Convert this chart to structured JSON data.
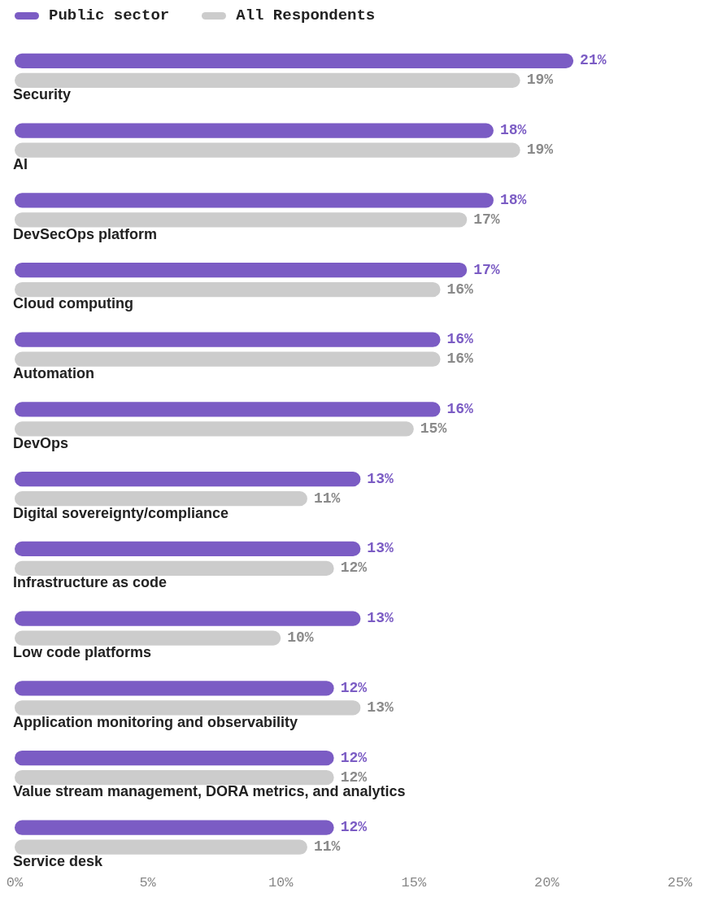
{
  "chart_data": {
    "type": "bar",
    "orientation": "horizontal",
    "categories": [
      "Security",
      "AI",
      "DevSecOps platform",
      "Cloud computing",
      "Automation",
      "DevOps",
      "Digital sovereignty/compliance",
      "Infrastructure as code",
      "Low code platforms",
      "Application monitoring and observability",
      "Value stream management, DORA metrics, and analytics",
      "Service desk"
    ],
    "series": [
      {
        "name": "Public sector",
        "color": "#7b5cc4",
        "values": [
          21,
          18,
          18,
          17,
          16,
          16,
          13,
          13,
          13,
          12,
          12,
          12
        ],
        "value_labels": [
          "21%",
          "18%",
          "18%",
          "17%",
          "16%",
          "16%",
          "13%",
          "13%",
          "13%",
          "12%",
          "12%",
          "12%"
        ]
      },
      {
        "name": "All Respondents",
        "color": "#cccccc",
        "values": [
          19,
          19,
          17,
          16,
          16,
          15,
          11,
          12,
          10,
          13,
          12,
          11
        ],
        "value_labels": [
          "19%",
          "19%",
          "17%",
          "16%",
          "16%",
          "15%",
          "11%",
          "12%",
          "10%",
          "13%",
          "12%",
          "11%"
        ]
      }
    ],
    "xlim": [
      0,
      25
    ],
    "xticks": [
      {
        "value": 0,
        "label": "0%"
      },
      {
        "value": 5,
        "label": "5%"
      },
      {
        "value": 10,
        "label": "10%"
      },
      {
        "value": 15,
        "label": "15%"
      },
      {
        "value": 20,
        "label": "20%"
      },
      {
        "value": 25,
        "label": "25%"
      }
    ],
    "legend": "top left",
    "grid": false
  }
}
